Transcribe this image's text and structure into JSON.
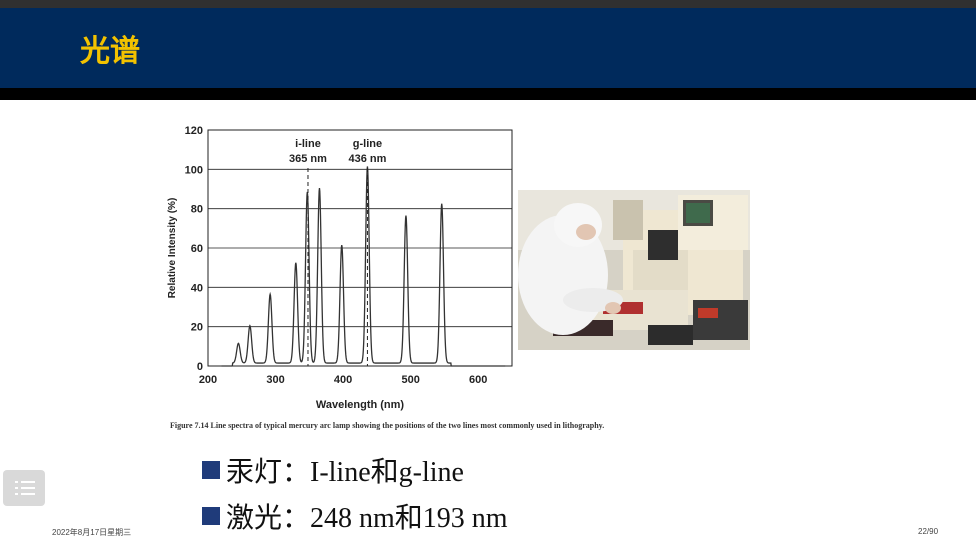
{
  "slide": {
    "title": "光谱",
    "date": "2022年8月17日星期三",
    "page": "22/90"
  },
  "figure": {
    "caption": "Figure 7.14   Line spectra of typical mercury arc lamp showing the positions of the two lines most commonly used in lithography."
  },
  "bullets": [
    {
      "text": "汞灯：I-line和g-line"
    },
    {
      "text": "激光：248 nm和193 nm"
    }
  ],
  "colors": {
    "header_bg": "#002a5c",
    "title": "#f2c200",
    "bullet_square": "#1f3b7a"
  },
  "icons": {
    "menu": "menu-icon"
  },
  "chart_data": {
    "type": "line",
    "xlabel": "Wavelength (nm)",
    "ylabel": "Relative Intensity (%)",
    "xlim": [
      200,
      650
    ],
    "ylim": [
      0,
      120
    ],
    "xticks": [
      200,
      300,
      400,
      500,
      600
    ],
    "yticks": [
      0,
      20,
      40,
      60,
      80,
      100,
      120
    ],
    "grid": "horizontal",
    "peaks": [
      {
        "x": 245,
        "y": 10
      },
      {
        "x": 262,
        "y": 19
      },
      {
        "x": 292,
        "y": 35
      },
      {
        "x": 330,
        "y": 51
      },
      {
        "x": 347,
        "y": 87
      },
      {
        "x": 365,
        "y": 89
      },
      {
        "x": 398,
        "y": 60
      },
      {
        "x": 436,
        "y": 100
      },
      {
        "x": 493,
        "y": 75
      },
      {
        "x": 546,
        "y": 81
      }
    ],
    "annotations": [
      {
        "label": "i-line",
        "sublabel": "365 nm",
        "x": 348
      },
      {
        "label": "g-line",
        "sublabel": "436 nm",
        "x": 436
      }
    ]
  }
}
